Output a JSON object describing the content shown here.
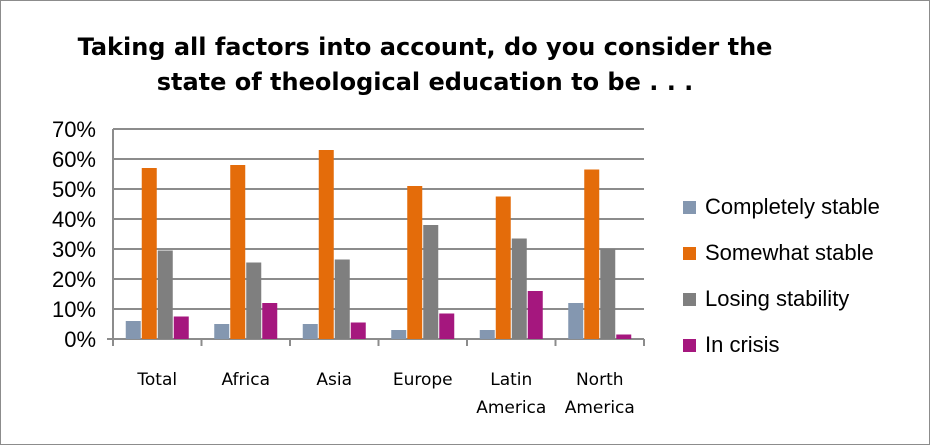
{
  "chart_data": {
    "type": "bar",
    "title_lines": [
      "Taking all factors into account, do you consider the",
      "state of theological education to be . . ."
    ],
    "categories": [
      [
        "Total"
      ],
      [
        "Africa"
      ],
      [
        "Asia"
      ],
      [
        "Europe"
      ],
      [
        "Latin",
        "America"
      ],
      [
        "North",
        "America"
      ]
    ],
    "ylim": [
      0,
      0.7
    ],
    "yticks": [
      {
        "v": 0,
        "label": "0%"
      },
      {
        "v": 0.1,
        "label": "10%"
      },
      {
        "v": 0.2,
        "label": "20%"
      },
      {
        "v": 0.3,
        "label": "30%"
      },
      {
        "v": 0.4,
        "label": "40%"
      },
      {
        "v": 0.5,
        "label": "50%"
      },
      {
        "v": 0.6,
        "label": "60%"
      },
      {
        "v": 0.7,
        "label": "70%"
      }
    ],
    "grid": true,
    "legend_position": "right",
    "series": [
      {
        "name": "Completely stable",
        "color": "#8497b0",
        "values": [
          0.06,
          0.05,
          0.05,
          0.03,
          0.03,
          0.12
        ]
      },
      {
        "name": "Somewhat stable",
        "color": "#e46c0a",
        "values": [
          0.57,
          0.58,
          0.63,
          0.51,
          0.475,
          0.565
        ]
      },
      {
        "name": "Losing stability",
        "color": "#7f7f7f",
        "values": [
          0.295,
          0.255,
          0.265,
          0.38,
          0.335,
          0.3
        ]
      },
      {
        "name": "In crisis",
        "color": "#a5177e",
        "values": [
          0.075,
          0.12,
          0.055,
          0.085,
          0.16,
          0.015
        ]
      }
    ]
  }
}
